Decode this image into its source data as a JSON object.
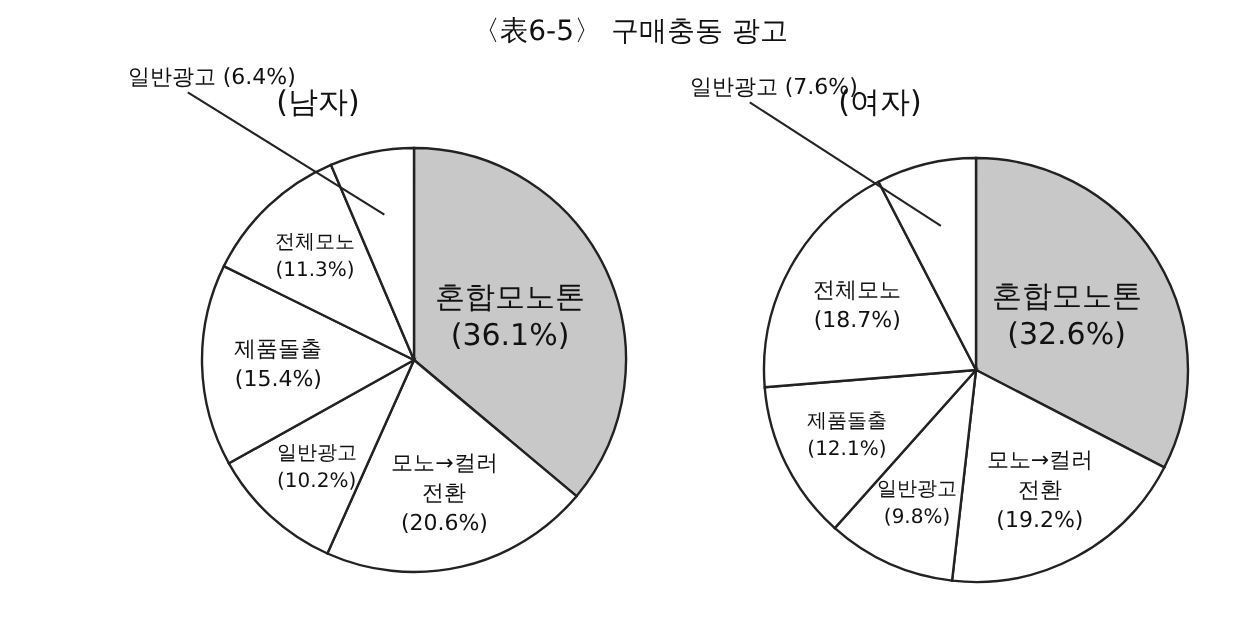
{
  "chart_data": [
    {
      "type": "pie",
      "title": "(남자)",
      "annotations": [
        "〈表6-5〉 구매충동 광고"
      ],
      "categories": [
        "혼합모노톤",
        "모노→컬러 전환",
        "일반광고",
        "제품돌출",
        "전체모노",
        "일반광고"
      ],
      "values": [
        36.1,
        20.6,
        10.2,
        15.4,
        11.3,
        6.4
      ],
      "value_labels": [
        "(36.1%)",
        "(20.6%)",
        "(10.2%)",
        "(15.4%)",
        "(11.3%)",
        "(6.4%)"
      ],
      "colors": [
        "#c8c8c8",
        "#ffffff",
        "#ffffff",
        "#ffffff",
        "#ffffff",
        "#ffffff"
      ]
    },
    {
      "type": "pie",
      "title": "(여자)",
      "categories": [
        "혼합모노톤",
        "모노→컬러 전환",
        "일반광고",
        "제품돌출",
        "전체모노",
        "일반광고"
      ],
      "values": [
        32.6,
        19.2,
        9.8,
        12.1,
        18.7,
        7.6
      ],
      "value_labels": [
        "(32.6%)",
        "(19.2%)",
        "(9.8%)",
        "(12.1%)",
        "(18.7%)",
        "(7.6%)"
      ],
      "colors": [
        "#c8c8c8",
        "#ffffff",
        "#ffffff",
        "#ffffff",
        "#ffffff",
        "#ffffff"
      ]
    }
  ]
}
